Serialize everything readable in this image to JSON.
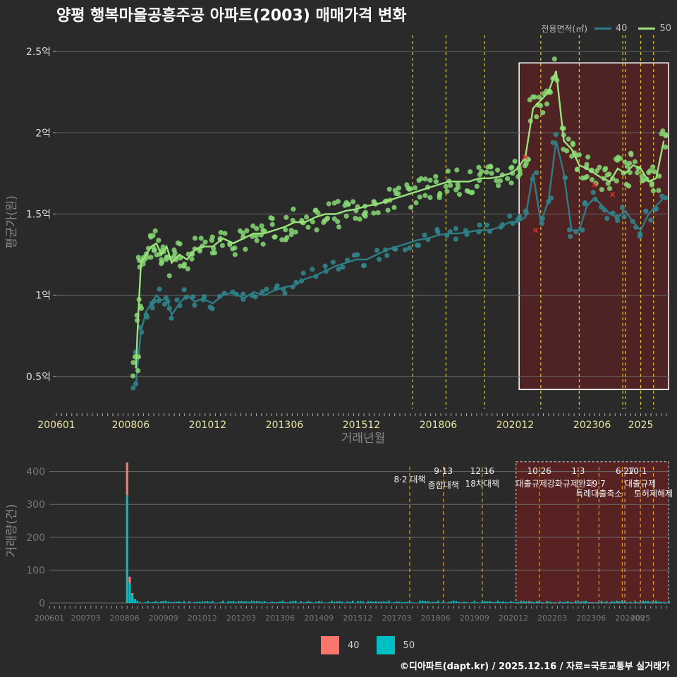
{
  "title": "양평 행복마을공흥주공 아파트(2003) 매매가격 변화",
  "legend_top": {
    "title": "전용면적(㎡)",
    "items": [
      {
        "label": "40",
        "color": "#2e7d86"
      },
      {
        "label": "50",
        "color": "#9be27c"
      }
    ]
  },
  "legend_bottom": {
    "items": [
      {
        "label": "40",
        "color": "#f8766d"
      },
      {
        "label": "50",
        "color": "#00bfc4"
      }
    ]
  },
  "credit": "©디아파트(dapt.kr) / 2025.12.16 / 자료=국토교통부 실거래가",
  "chart_data": [
    {
      "type": "line",
      "title": "양평 행복마을공흥주공 아파트(2003) 매매가격 변화",
      "xlabel": "거래년월",
      "ylabel": "평균가(원)",
      "x_ticks": [
        "200601",
        "200806",
        "201012",
        "201306",
        "201512",
        "201806",
        "202012",
        "202306",
        "2025"
      ],
      "y_ticks": [
        "0.5억",
        "1억",
        "1.5억",
        "2억",
        "2.5억"
      ],
      "ylim": [
        0.3,
        2.6
      ],
      "policy_lines": [
        "2017-08",
        "2018-09",
        "2019-12",
        "2021-10",
        "2023-01",
        "2024-06",
        "2024-07",
        "2025-01",
        "2025-06"
      ],
      "highlight_range": [
        "2021-01",
        "2025-12"
      ],
      "series": [
        {
          "name": "40",
          "color": "#2e7d86",
          "x": [
            "2008-08",
            "2008-09",
            "2008-10",
            "2008-12",
            "2009-02",
            "2009-04",
            "2009-06",
            "2009-08",
            "2009-10",
            "2010-01",
            "2010-04",
            "2010-07",
            "2010-10",
            "2011-02",
            "2011-06",
            "2011-10",
            "2012-02",
            "2012-06",
            "2012-10",
            "2013-02",
            "2013-06",
            "2013-10",
            "2014-02",
            "2014-06",
            "2014-10",
            "2015-02",
            "2015-06",
            "2015-10",
            "2016-02",
            "2016-06",
            "2016-10",
            "2017-02",
            "2017-06",
            "2017-10",
            "2018-02",
            "2018-06",
            "2018-10",
            "2019-02",
            "2019-06",
            "2019-10",
            "2020-02",
            "2020-06",
            "2020-10",
            "2021-01",
            "2021-04",
            "2021-07",
            "2021-10",
            "2022-01",
            "2022-04",
            "2022-07",
            "2022-10",
            "2023-01",
            "2023-04",
            "2023-07",
            "2023-10",
            "2024-01",
            "2024-04",
            "2024-07",
            "2024-10",
            "2025-01",
            "2025-04",
            "2025-07",
            "2025-10"
          ],
          "values": [
            0.45,
            0.62,
            0.78,
            0.9,
            0.95,
            1.0,
            0.97,
            0.98,
            0.88,
            0.95,
            1.0,
            0.96,
            0.98,
            0.95,
            1.0,
            1.02,
            0.98,
            1.02,
            1.0,
            1.03,
            1.05,
            1.06,
            1.1,
            1.12,
            1.15,
            1.18,
            1.2,
            1.22,
            1.22,
            1.25,
            1.28,
            1.3,
            1.32,
            1.34,
            1.35,
            1.37,
            1.38,
            1.38,
            1.39,
            1.4,
            1.4,
            1.42,
            1.45,
            1.45,
            1.48,
            1.75,
            1.45,
            1.58,
            1.95,
            1.75,
            1.4,
            1.4,
            1.55,
            1.6,
            1.55,
            1.5,
            1.48,
            1.52,
            1.45,
            1.4,
            1.5,
            1.55,
            1.6
          ]
        },
        {
          "name": "50",
          "color": "#9be27c",
          "x": [
            "2008-08",
            "2008-09",
            "2008-10",
            "2008-12",
            "2009-02",
            "2009-04",
            "2009-06",
            "2009-08",
            "2009-10",
            "2010-01",
            "2010-04",
            "2010-07",
            "2010-10",
            "2011-02",
            "2011-06",
            "2011-10",
            "2012-02",
            "2012-06",
            "2012-10",
            "2013-02",
            "2013-06",
            "2013-10",
            "2014-02",
            "2014-06",
            "2014-10",
            "2015-02",
            "2015-06",
            "2015-10",
            "2016-02",
            "2016-06",
            "2016-10",
            "2017-02",
            "2017-06",
            "2017-10",
            "2018-02",
            "2018-06",
            "2018-10",
            "2019-02",
            "2019-06",
            "2019-10",
            "2020-02",
            "2020-06",
            "2020-10",
            "2021-01",
            "2021-04",
            "2021-07",
            "2021-10",
            "2022-01",
            "2022-04",
            "2022-07",
            "2022-10",
            "2023-01",
            "2023-04",
            "2023-07",
            "2023-10",
            "2024-01",
            "2024-04",
            "2024-07",
            "2024-10",
            "2025-01",
            "2025-04",
            "2025-07",
            "2025-10"
          ],
          "values": [
            0.55,
            0.9,
            1.2,
            1.25,
            1.3,
            1.32,
            1.25,
            1.3,
            1.2,
            1.25,
            1.22,
            1.28,
            1.3,
            1.3,
            1.35,
            1.32,
            1.35,
            1.38,
            1.38,
            1.4,
            1.42,
            1.45,
            1.45,
            1.48,
            1.5,
            1.5,
            1.52,
            1.53,
            1.55,
            1.56,
            1.58,
            1.6,
            1.62,
            1.64,
            1.66,
            1.68,
            1.7,
            1.7,
            1.7,
            1.72,
            1.72,
            1.73,
            1.75,
            1.78,
            1.85,
            2.15,
            2.2,
            2.25,
            2.38,
            1.95,
            1.9,
            1.8,
            1.78,
            1.75,
            1.72,
            1.7,
            1.78,
            1.75,
            1.8,
            1.78,
            1.7,
            1.72,
            1.95
          ]
        }
      ]
    },
    {
      "type": "bar",
      "ylabel": "거래량(건)",
      "x_ticks": [
        "200601",
        "200703",
        "200806",
        "200909",
        "201012",
        "201203",
        "201306",
        "201409",
        "201512",
        "201703",
        "201806",
        "201909",
        "202012",
        "202203",
        "202306",
        "202409",
        "2025"
      ],
      "y_ticks": [
        "0",
        "100",
        "200",
        "300",
        "400"
      ],
      "ylim": [
        0,
        440
      ],
      "series": [
        {
          "name": "40",
          "color": "#f8766d",
          "x": [
            "2008-07",
            "2008-08",
            "2008-09",
            "2008-10"
          ],
          "values": [
            100,
            20,
            5,
            2
          ]
        },
        {
          "name": "50",
          "color": "#00bfc4",
          "x": [
            "2008-07",
            "2008-08",
            "2008-09",
            "2008-10"
          ],
          "values": [
            328,
            60,
            25,
            10
          ]
        }
      ],
      "annotations": [
        {
          "date": "2017-08",
          "label": "8·2 대책"
        },
        {
          "date": "2018-09",
          "label": "9·13"
        },
        {
          "date": "2018-09",
          "label": "종합대책"
        },
        {
          "date": "2019-12",
          "label": "12·16"
        },
        {
          "date": "2019-12",
          "label": "18차대책"
        },
        {
          "date": "2021-10",
          "label": "10·26"
        },
        {
          "date": "2021-10",
          "label": "대출규제강화"
        },
        {
          "date": "2023-01",
          "label": "1·3"
        },
        {
          "date": "2023-01",
          "label": "규제완화"
        },
        {
          "date": "2023-09",
          "label": "9·7"
        },
        {
          "date": "2023-09",
          "label": "특례대출축소"
        },
        {
          "date": "2024-06",
          "label": "6·27"
        },
        {
          "date": "2024-07",
          "label": "10·1"
        },
        {
          "date": "2025-01",
          "label": "대출규제"
        },
        {
          "date": "2025-06",
          "label": "토허제해제"
        }
      ]
    }
  ]
}
